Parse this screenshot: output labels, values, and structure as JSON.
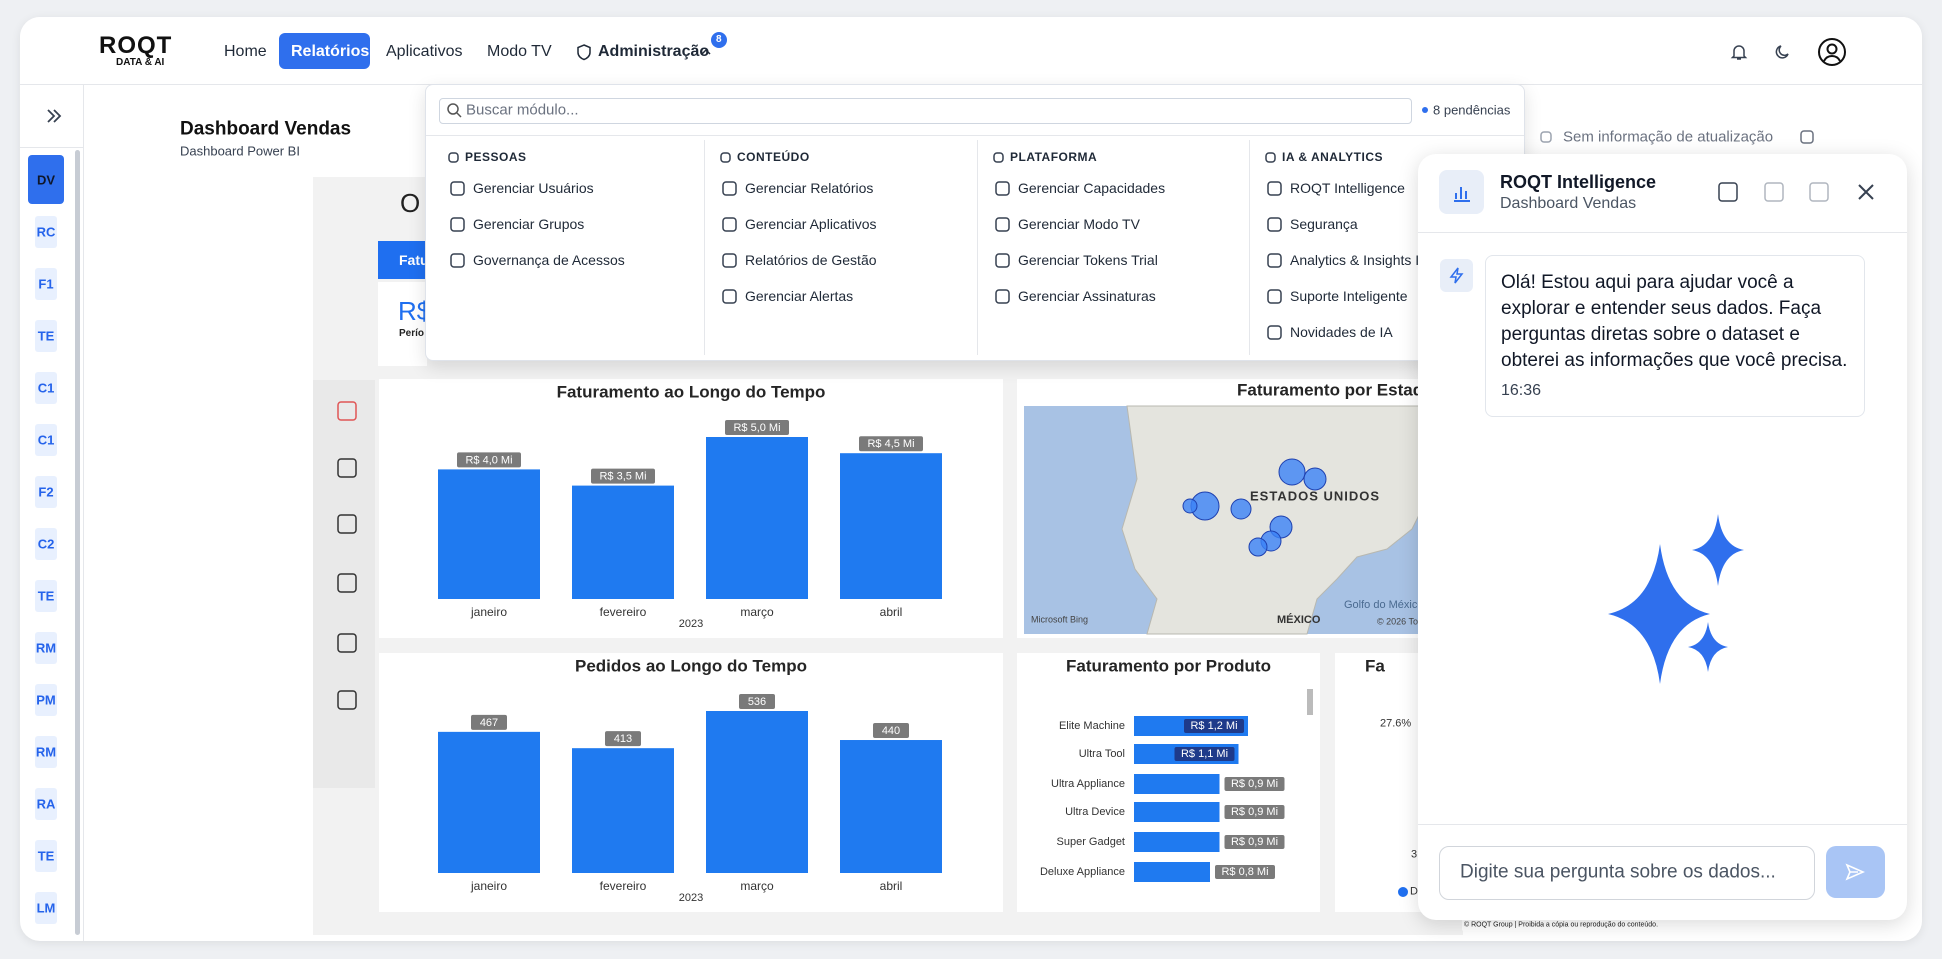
{
  "header": {
    "logo": "ROQT",
    "logo_sub": "DATA & AI",
    "nav": [
      "Home",
      "Relatórios",
      "Aplicativos",
      "Modo TV",
      "Administração"
    ],
    "badge": "8"
  },
  "sidebar": {
    "items": [
      "DV",
      "RC",
      "F1",
      "TE",
      "C1",
      "C1",
      "F2",
      "C2",
      "TE",
      "RM",
      "PM",
      "RM",
      "RA",
      "TE",
      "LM"
    ]
  },
  "dashboard": {
    "title": "Dashboard Vendas",
    "subtitle": "Dashboard Power BI",
    "update": "Sem informação de atualização"
  },
  "menu": {
    "search": "Buscar módulo...",
    "pending": "8 pendências",
    "columns": [
      {
        "title": "PESSOAS",
        "items": [
          "Gerenciar Usuários",
          "Gerenciar Grupos",
          "Governança de Acessos"
        ]
      },
      {
        "title": "CONTEÚDO",
        "items": [
          "Gerenciar Relatórios",
          "Gerenciar Aplicativos",
          "Relatórios de Gestão",
          "Gerenciar Alertas"
        ]
      },
      {
        "title": "PLATAFORMA",
        "items": [
          "Gerenciar Capacidades",
          "Gerenciar Modo TV",
          "Gerenciar Tokens Trial",
          "Gerenciar Assinaturas"
        ]
      },
      {
        "title": "IA & ANALYTICS",
        "items": [
          "ROQT Intelligence",
          "Segurança",
          "Analytics & Insights I",
          "Suporte Inteligente",
          "Novidades de IA"
        ]
      }
    ]
  },
  "report": {
    "heading": "O V",
    "tab": "Fatu",
    "kpi": "R$",
    "kpi_sub": "Perío",
    "footer": "© ROQT Group | Proibida a cópia ou reprodução do conteúdo.",
    "charts": [
      {
        "type": "bar",
        "title": "Faturamento ao Longo do Tempo",
        "categories": [
          "janeiro",
          "fevereiro",
          "março",
          "abril"
        ],
        "values": [
          4.0,
          3.5,
          5.0,
          4.5
        ],
        "value_labels": [
          "R$ 4,0 Mi",
          "R$ 3,5 Mi",
          "R$ 5,0 Mi",
          "R$ 4,5 Mi"
        ],
        "x_label": "2023",
        "color": "#1f7af0"
      },
      {
        "type": "bar",
        "title": "Pedidos ao Longo do Tempo",
        "categories": [
          "janeiro",
          "fevereiro",
          "março",
          "abril"
        ],
        "values": [
          467,
          413,
          536,
          440
        ],
        "x_label": "2023",
        "color": "#1f7af0"
      },
      {
        "type": "hbar",
        "title": "Faturamento por Produto",
        "categories": [
          "Elite Machine",
          "Ultra Tool",
          "Ultra Appliance",
          "Ultra Device",
          "Super Gadget",
          "Deluxe Appliance"
        ],
        "values": [
          1.2,
          1.1,
          0.9,
          0.9,
          0.9,
          0.8
        ],
        "value_labels": [
          "R$ 1,2 Mi",
          "R$ 1,1 Mi",
          "R$ 0,9 Mi",
          "R$ 0,9 Mi",
          "R$ 0,9 Mi",
          "R$ 0,8 Mi"
        ],
        "color": "#1f7af0"
      }
    ],
    "map": {
      "title": "Faturamento por Estado",
      "country": "ESTADOS UNIDOS",
      "gulf": "Golfo do México",
      "mexico": "MÉXICO",
      "bing": "Microsoft Bing",
      "credit": "© 2026 To"
    },
    "partial": {
      "title": "Fa",
      "pct": "27.6%",
      "num": "3",
      "legend": "D"
    }
  },
  "chat": {
    "title": "ROQT Intelligence",
    "subtitle": "Dashboard Vendas",
    "message": "Olá! Estou aqui para ajudar você a explorar e entender seus dados. Faça perguntas diretas sobre o dataset e obterei as informações que você precisa.",
    "time": "16:36",
    "input": "Digite sua pergunta sobre os dados..."
  }
}
